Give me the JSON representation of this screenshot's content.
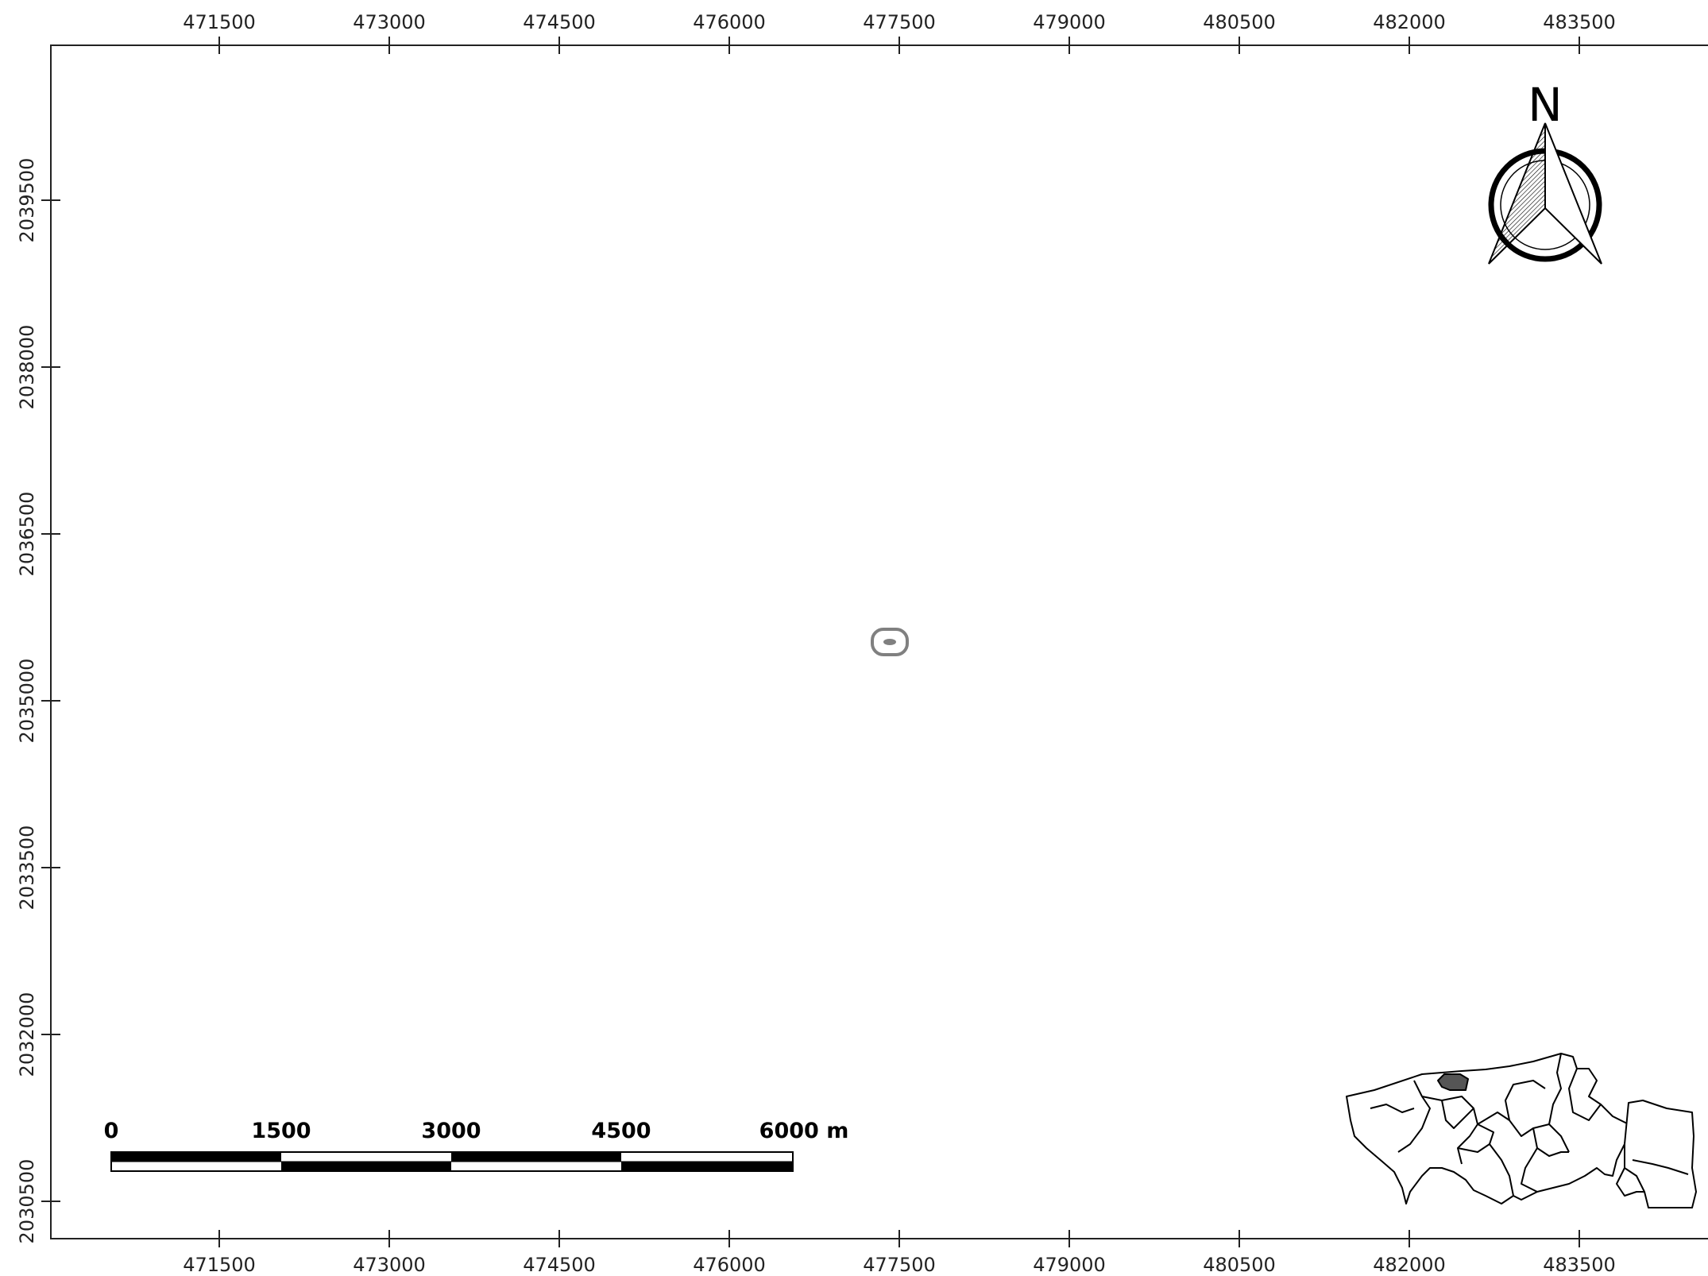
{
  "map": {
    "x_ticks": [
      "471500",
      "473000",
      "474500",
      "476000",
      "477500",
      "479000",
      "480500",
      "482000",
      "483500"
    ],
    "y_ticks": [
      "2039500",
      "2038000",
      "2036500",
      "2035000",
      "2033500",
      "2032000",
      "2030500"
    ],
    "north_label": "N",
    "scale_bar": {
      "labels": [
        "0",
        "1500",
        "3000",
        "4500",
        "6000 m"
      ],
      "unit": "m"
    },
    "feature": {
      "name": "point-feature",
      "x": 477450,
      "y": 2035530
    },
    "colors": {
      "frame": "#222222",
      "feature": "#808080",
      "highlight": "#555555",
      "background": "#ffffff"
    }
  }
}
